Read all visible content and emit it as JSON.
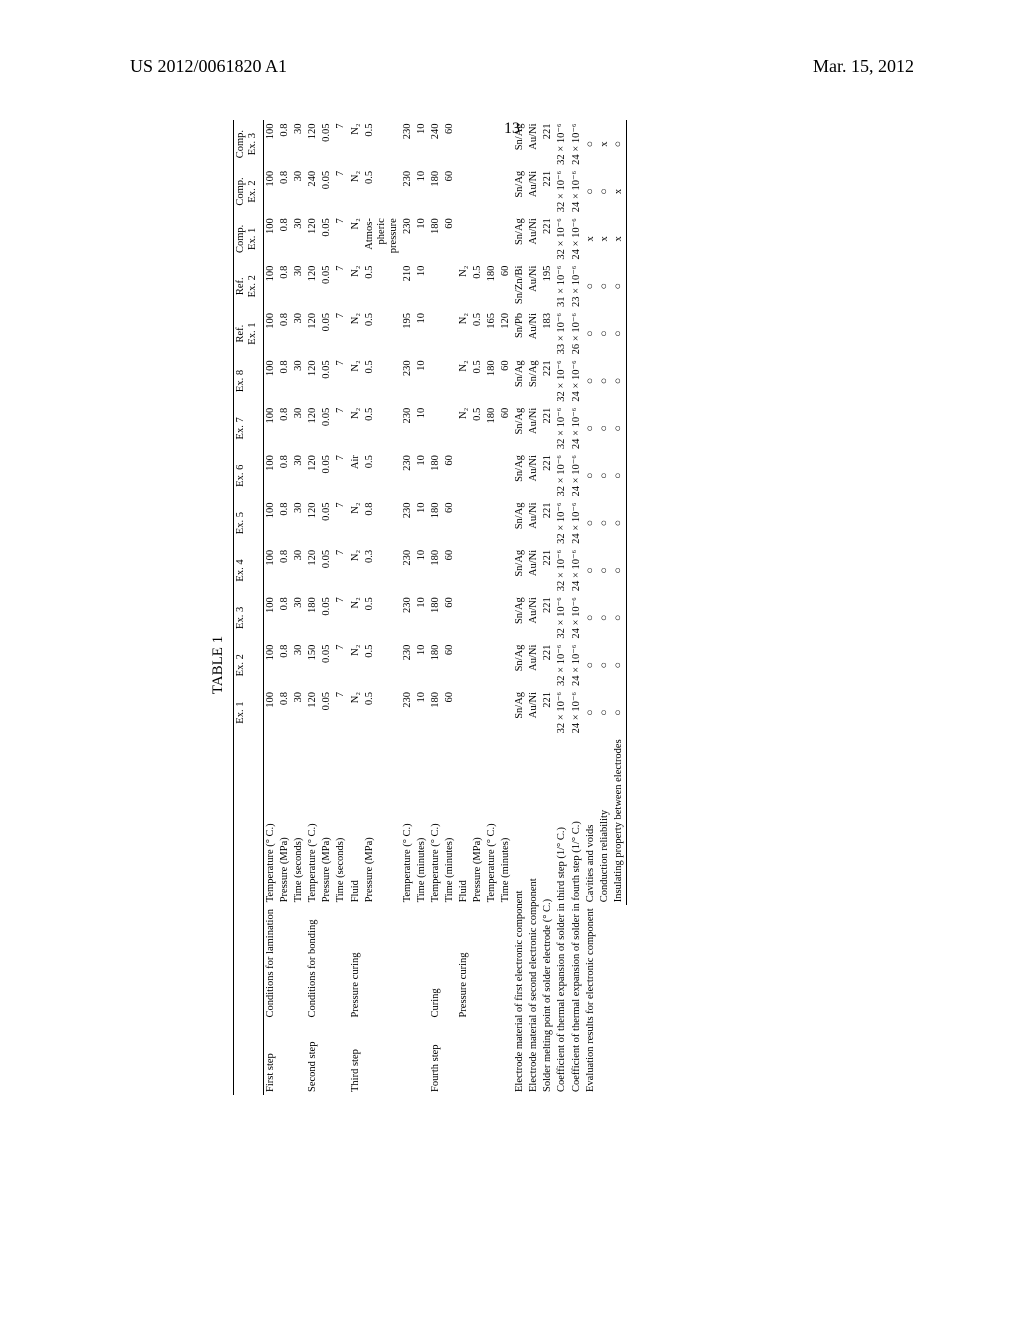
{
  "header_left": "US 2012/0061820 A1",
  "header_right": "Mar. 15, 2012",
  "page_number": "13",
  "caption": "TABLE 1",
  "columns": [
    "Ex. 1",
    "Ex. 2",
    "Ex. 3",
    "Ex. 4",
    "Ex. 5",
    "Ex. 6",
    "Ex. 7",
    "Ex. 8",
    "Ref. Ex. 1",
    "Ref. Ex. 2",
    "Comp. Ex. 1",
    "Comp. Ex. 2",
    "Comp. Ex. 3"
  ],
  "stub_blank": "",
  "blocks": [
    {
      "l1": "First step",
      "l2": "Conditions for lamination",
      "rows": [
        {
          "l3": "Temperature (° C.)",
          "v": [
            "100",
            "100",
            "100",
            "100",
            "100",
            "100",
            "100",
            "100",
            "100",
            "100",
            "100",
            "100",
            "100"
          ]
        },
        {
          "l3": "Pressure (MPa)",
          "v": [
            "0.8",
            "0.8",
            "0.8",
            "0.8",
            "0.8",
            "0.8",
            "0.8",
            "0.8",
            "0.8",
            "0.8",
            "0.8",
            "0.8",
            "0.8"
          ]
        },
        {
          "l3": "Time (seconds)",
          "v": [
            "30",
            "30",
            "30",
            "30",
            "30",
            "30",
            "30",
            "30",
            "30",
            "30",
            "30",
            "30",
            "30"
          ]
        }
      ]
    },
    {
      "l1": "Second step",
      "l2": "Conditions for bonding",
      "rows": [
        {
          "l3": "Temperature (° C.)",
          "v": [
            "120",
            "150",
            "180",
            "120",
            "120",
            "120",
            "120",
            "120",
            "120",
            "120",
            "120",
            "240",
            "120"
          ]
        },
        {
          "l3": "Pressure (MPa)",
          "v": [
            "0.05",
            "0.05",
            "0.05",
            "0.05",
            "0.05",
            "0.05",
            "0.05",
            "0.05",
            "0.05",
            "0.05",
            "0.05",
            "0.05",
            "0.05"
          ]
        },
        {
          "l3": "Time (seconds)",
          "v": [
            "7",
            "7",
            "7",
            "7",
            "7",
            "7",
            "7",
            "7",
            "7",
            "7",
            "7",
            "7",
            "7"
          ]
        }
      ]
    },
    {
      "l1": "Third step",
      "l2": "Pressure curing",
      "rows": [
        {
          "l3": "Fluid",
          "v": [
            "N₂",
            "N₂",
            "N₂",
            "N₂",
            "N₂",
            "Air",
            "N₂",
            "N₂",
            "N₂",
            "N₂",
            "N₂",
            "N₂",
            "N₂"
          ]
        },
        {
          "l3": "Pressure (MPa)",
          "v": [
            "0.5",
            "0.5",
            "0.5",
            "0.3",
            "0.8",
            "0.5",
            "0.5",
            "0.5",
            "0.5",
            "0.5",
            "Atmos- pheric pressure",
            "0.5",
            "0.5"
          ]
        },
        {
          "l3": "Temperature (° C.)",
          "v": [
            "230",
            "230",
            "230",
            "230",
            "230",
            "230",
            "230",
            "230",
            "195",
            "210",
            "230",
            "230",
            "230"
          ]
        },
        {
          "l3": "Time (minutes)",
          "v": [
            "10",
            "10",
            "10",
            "10",
            "10",
            "10",
            "10",
            "10",
            "10",
            "10",
            "10",
            "10",
            "10"
          ]
        }
      ]
    },
    {
      "l1": "Fourth step",
      "l2": "Curing",
      "rows": [
        {
          "l3": "Temperature (° C.)",
          "v": [
            "180",
            "180",
            "180",
            "180",
            "180",
            "180",
            "",
            "",
            "",
            "",
            "180",
            "180",
            "240"
          ]
        },
        {
          "l3": "Time (minutes)",
          "v": [
            "60",
            "60",
            "60",
            "60",
            "60",
            "60",
            "",
            "",
            "",
            "",
            "60",
            "60",
            "60"
          ]
        }
      ]
    },
    {
      "l1": "",
      "l2": "Pressure curing",
      "rows": [
        {
          "l3": "Fluid",
          "v": [
            "",
            "",
            "",
            "",
            "",
            "",
            "N₂",
            "N₂",
            "N₂",
            "N₂",
            "",
            "",
            ""
          ]
        },
        {
          "l3": "Pressure (MPa)",
          "v": [
            "",
            "",
            "",
            "",
            "",
            "",
            "0.5",
            "0.5",
            "0.5",
            "0.5",
            "",
            "",
            ""
          ]
        },
        {
          "l3": "Temperature (° C.)",
          "v": [
            "",
            "",
            "",
            "",
            "",
            "",
            "180",
            "180",
            "165",
            "180",
            "",
            "",
            ""
          ]
        },
        {
          "l3": "Time (minutes)",
          "v": [
            "",
            "",
            "",
            "",
            "",
            "",
            "60",
            "60",
            "120",
            "60",
            "",
            "",
            ""
          ]
        }
      ]
    }
  ],
  "footer_rows": [
    {
      "label": "Electrode material of first electronic component",
      "v": [
        "Sn/Ag",
        "Sn/Ag",
        "Sn/Ag",
        "Sn/Ag",
        "Sn/Ag",
        "Sn/Ag",
        "Sn/Ag",
        "Sn/Ag",
        "Sn/Pb",
        "Sn/Zn/Bi",
        "Sn/Ag",
        "Sn/Ag",
        "Sn/Ag"
      ]
    },
    {
      "label": "Electrode material of second electronic component",
      "v": [
        "Au/Ni",
        "Au/Ni",
        "Au/Ni",
        "Au/Ni",
        "Au/Ni",
        "Au/Ni",
        "Au/Ni",
        "Sn/Ag",
        "Au/Ni",
        "Au/Ni",
        "Au/Ni",
        "Au/Ni",
        "Au/Ni"
      ]
    },
    {
      "label": "Solder melting point of solder electrode (° C.)",
      "v": [
        "221",
        "221",
        "221",
        "221",
        "221",
        "221",
        "221",
        "221",
        "183",
        "195",
        "221",
        "221",
        "221"
      ]
    },
    {
      "label": "Coefficient of thermal expansion of solder in third step (1/° C.)",
      "v": [
        "32 × 10⁻⁶",
        "32 × 10⁻⁶",
        "32 × 10⁻⁶",
        "32 × 10⁻⁶",
        "32 × 10⁻⁶",
        "32 × 10⁻⁶",
        "32 × 10⁻⁶",
        "32 × 10⁻⁶",
        "33 × 10⁻⁶",
        "31 × 10⁻⁶",
        "32 × 10⁻⁶",
        "32 × 10⁻⁶",
        "32 × 10⁻⁶"
      ]
    },
    {
      "label": "Coefficient of thermal expansion of solder in fourth step (1/° C.)",
      "v": [
        "24 × 10⁻⁶",
        "24 × 10⁻⁶",
        "24 × 10⁻⁶",
        "24 × 10⁻⁶",
        "24 × 10⁻⁶",
        "24 × 10⁻⁶",
        "24 × 10⁻⁶",
        "24 × 10⁻⁶",
        "26 × 10⁻⁶",
        "23 × 10⁻⁶",
        "24 × 10⁻⁶",
        "24 × 10⁻⁶",
        "24 × 10⁻⁶"
      ]
    }
  ],
  "eval_block": {
    "l1": "Evaluation results for electronic component",
    "rows": [
      {
        "l3": "Cavities and voids",
        "v": [
          "○",
          "○",
          "○",
          "○",
          "○",
          "○",
          "○",
          "○",
          "○",
          "○",
          "x",
          "○",
          "○"
        ]
      },
      {
        "l3": "Conduction reliability",
        "v": [
          "○",
          "○",
          "○",
          "○",
          "○",
          "○",
          "○",
          "○",
          "○",
          "○",
          "x",
          "○",
          "x"
        ]
      },
      {
        "l3": "Insulating property between electrodes",
        "v": [
          "○",
          "○",
          "○",
          "○",
          "○",
          "○",
          "○",
          "○",
          "○",
          "○",
          "x",
          "x",
          "○"
        ]
      }
    ]
  }
}
